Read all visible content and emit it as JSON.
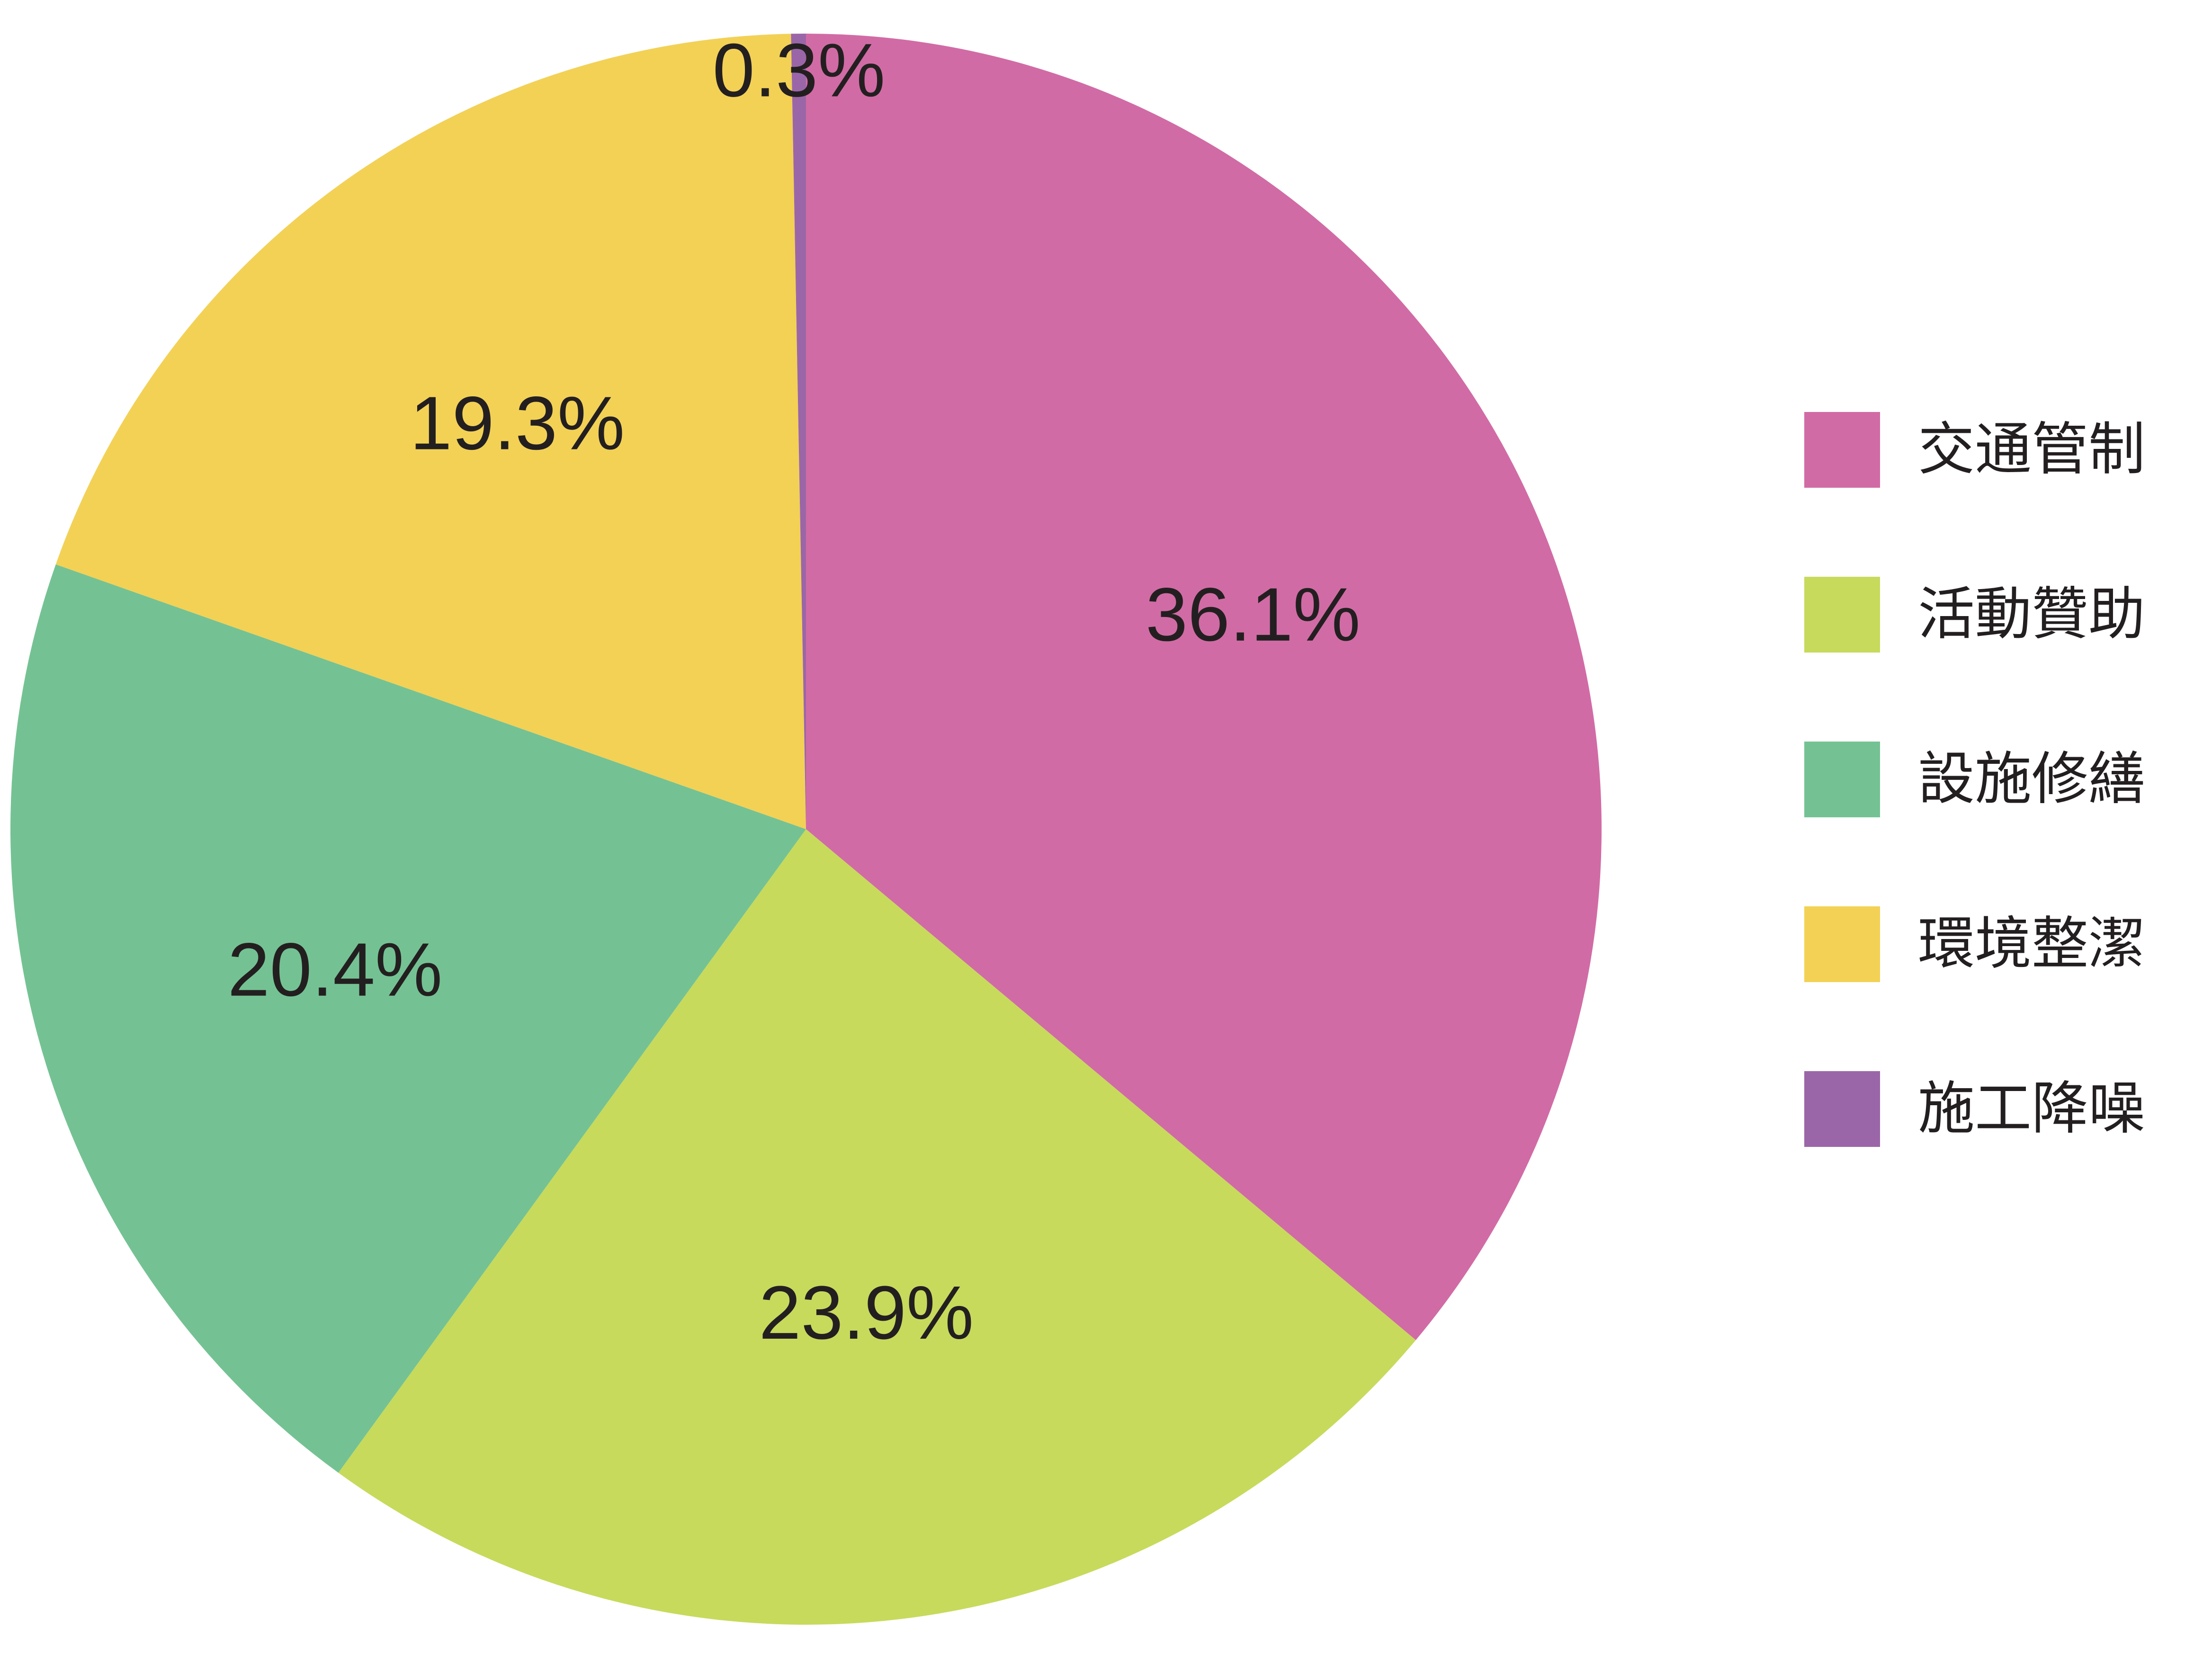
{
  "chart_data": {
    "type": "pie",
    "title": "",
    "slices": [
      {
        "label": "交通管制",
        "value": 36.1,
        "value_label": "36.1%",
        "color": "#d16ba5"
      },
      {
        "label": "活動贊助",
        "value": 23.9,
        "value_label": "23.9%",
        "color": "#c7da5c"
      },
      {
        "label": "設施修繕",
        "value": 20.4,
        "value_label": "20.4%",
        "color": "#74c293"
      },
      {
        "label": "環境整潔",
        "value": 19.3,
        "value_label": "19.3%",
        "color": "#f2d155"
      },
      {
        "label": "施工降噪",
        "value": 0.3,
        "value_label": "0.3%",
        "color": "#9b66a8"
      }
    ],
    "start_angle": "12 o'clock",
    "direction": "clockwise",
    "legend": {
      "position": "right"
    }
  }
}
